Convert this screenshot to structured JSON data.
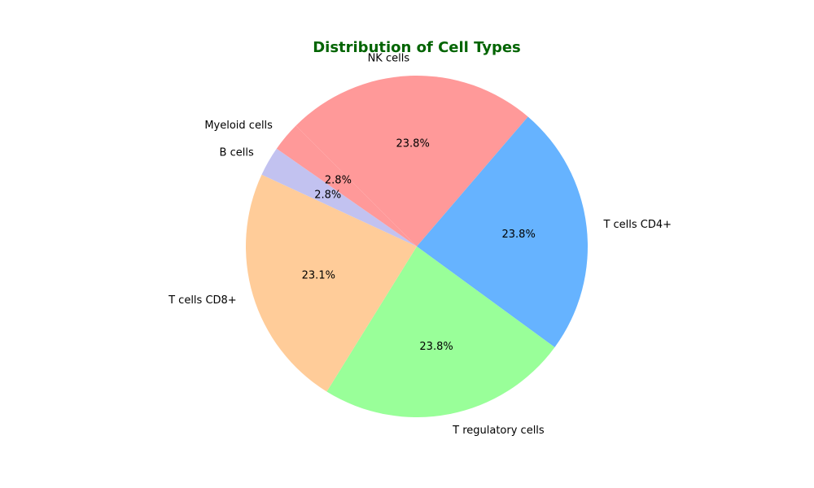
{
  "chart_data": {
    "type": "pie",
    "title": "Distribution of Cell Types",
    "title_color": "#006400",
    "start_angle_deg": 135,
    "direction": "clockwise",
    "slices": [
      {
        "label": "NK cells",
        "value": 23.8,
        "pct_label": "23.8%",
        "color": "#ff9999"
      },
      {
        "label": "T cells CD4+",
        "value": 23.8,
        "pct_label": "23.8%",
        "color": "#66b3ff"
      },
      {
        "label": "T regulatory cells",
        "value": 23.8,
        "pct_label": "23.8%",
        "color": "#99ff99"
      },
      {
        "label": "T cells CD8+",
        "value": 23.1,
        "pct_label": "23.1%",
        "color": "#ffcc99"
      },
      {
        "label": "B cells",
        "value": 2.8,
        "pct_label": "2.8%",
        "color": "#c2c2f0"
      },
      {
        "label": "Myeloid cells",
        "value": 2.8,
        "pct_label": "2.8%",
        "color": "#ff9999"
      }
    ]
  }
}
